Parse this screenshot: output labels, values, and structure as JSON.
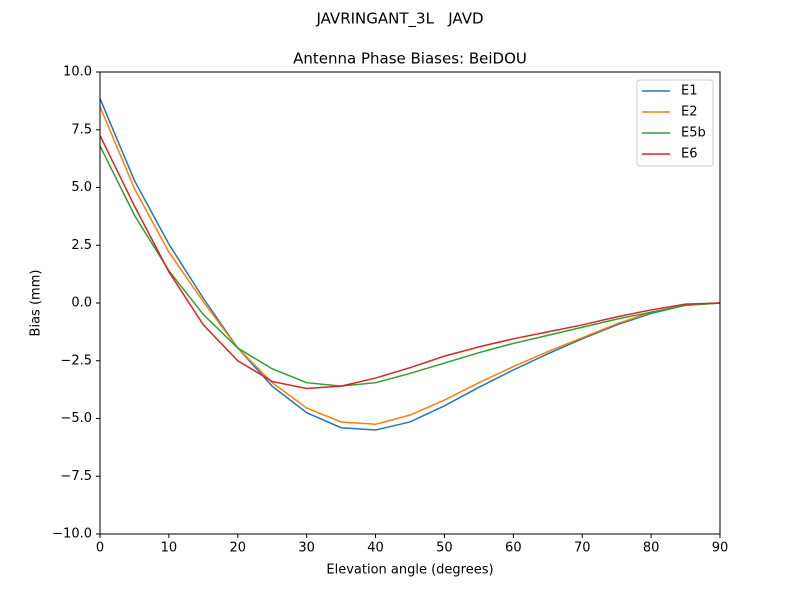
{
  "chart_data": {
    "type": "line",
    "suptitle": "JAVRINGANT_3L   JAVD",
    "title": "Antenna Phase Biases: BeiDOU",
    "xlabel": "Elevation angle (degrees)",
    "ylabel": "Bias (mm)",
    "x": [
      0,
      5,
      10,
      15,
      20,
      25,
      30,
      35,
      40,
      45,
      50,
      55,
      60,
      65,
      70,
      75,
      80,
      85,
      90
    ],
    "series": [
      {
        "name": "E1",
        "color": "#1f77b4",
        "values": [
          8.85,
          5.3,
          2.55,
          0.2,
          -1.95,
          -3.6,
          -4.75,
          -5.4,
          -5.5,
          -5.15,
          -4.45,
          -3.65,
          -2.9,
          -2.2,
          -1.55,
          -0.95,
          -0.45,
          -0.1,
          0
        ]
      },
      {
        "name": "E2",
        "color": "#ff7f0e",
        "values": [
          8.5,
          4.95,
          2.2,
          0.05,
          -1.95,
          -3.45,
          -4.55,
          -5.15,
          -5.25,
          -4.85,
          -4.2,
          -3.45,
          -2.75,
          -2.1,
          -1.5,
          -0.9,
          -0.4,
          -0.1,
          0
        ]
      },
      {
        "name": "E5b",
        "color": "#2ca02c",
        "values": [
          6.8,
          3.8,
          1.4,
          -0.5,
          -1.95,
          -2.85,
          -3.45,
          -3.6,
          -3.45,
          -3.05,
          -2.6,
          -2.15,
          -1.75,
          -1.4,
          -1.05,
          -0.7,
          -0.4,
          -0.1,
          0
        ]
      },
      {
        "name": "E6",
        "color": "#d62728",
        "values": [
          7.25,
          4.2,
          1.35,
          -0.95,
          -2.5,
          -3.4,
          -3.7,
          -3.6,
          -3.25,
          -2.8,
          -2.3,
          -1.9,
          -1.55,
          -1.25,
          -0.95,
          -0.6,
          -0.3,
          -0.05,
          0
        ]
      }
    ],
    "xlim": [
      0,
      90
    ],
    "xticks": [
      0,
      10,
      20,
      30,
      40,
      50,
      60,
      70,
      80,
      90
    ],
    "ylim": [
      -10,
      10
    ],
    "yticks": [
      {
        "value": -10,
        "label": "−10.0"
      },
      {
        "value": -7.5,
        "label": "−7.5"
      },
      {
        "value": -5,
        "label": "−5.0"
      },
      {
        "value": -2.5,
        "label": "−2.5"
      },
      {
        "value": 0,
        "label": "0.0"
      },
      2.5,
      {
        "value": 5,
        "label": "5.0"
      },
      7.5,
      {
        "value": 10,
        "label": "10.0"
      }
    ],
    "legend": "upper right"
  }
}
